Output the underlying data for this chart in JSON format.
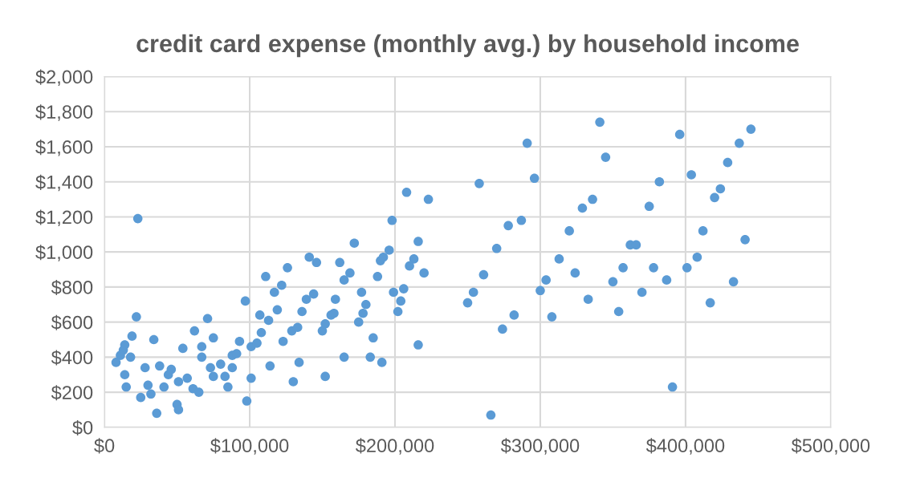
{
  "chart_data": {
    "type": "scatter",
    "title": "credit card expense (monthly avg.) by household income",
    "x": [
      22000,
      19000,
      14000,
      13000,
      11000,
      8000,
      18000,
      14000,
      15000,
      28000,
      34000,
      25000,
      30000,
      32000,
      36000,
      38000,
      46000,
      44000,
      41000,
      50000,
      51000,
      51000,
      57000,
      54000,
      61000,
      65000,
      62000,
      67000,
      67000,
      71000,
      75000,
      73000,
      75000,
      80000,
      83000,
      85000,
      88000,
      91000,
      88000,
      93000,
      97000,
      98000,
      101000,
      101000,
      105000,
      107000,
      113000,
      108000,
      111000,
      114000,
      119000,
      117000,
      122000,
      126000,
      130000,
      123000,
      129000,
      133000,
      134000,
      136000,
      139000,
      144000,
      141000,
      146000,
      162000,
      159000,
      165000,
      152000,
      150000,
      152000,
      156000,
      158000,
      165000,
      23000,
      291000,
      296000,
      258000,
      208000,
      223000,
      198000,
      287000,
      278000,
      270000,
      172000,
      196000,
      190000,
      216000,
      213000,
      329000,
      336000,
      320000,
      313000,
      192000,
      210000,
      220000,
      261000,
      169000,
      188000,
      177000,
      180000,
      178000,
      175000,
      199000,
      206000,
      204000,
      202000,
      185000,
      216000,
      183000,
      191000,
      254000,
      250000,
      282000,
      274000,
      266000,
      324000,
      304000,
      300000,
      333000,
      308000,
      341000,
      396000,
      445000,
      437000,
      345000,
      429000,
      404000,
      382000,
      424000,
      420000,
      375000,
      412000,
      441000,
      362000,
      366000,
      408000,
      357000,
      378000,
      401000,
      350000,
      387000,
      433000,
      370000,
      417000,
      354000,
      391000
    ],
    "values": [
      630,
      520,
      470,
      440,
      410,
      370,
      400,
      300,
      230,
      340,
      500,
      170,
      240,
      190,
      80,
      350,
      330,
      300,
      230,
      130,
      100,
      260,
      280,
      450,
      220,
      200,
      550,
      460,
      400,
      620,
      510,
      340,
      290,
      360,
      290,
      230,
      410,
      420,
      340,
      490,
      720,
      150,
      280,
      460,
      480,
      640,
      610,
      540,
      860,
      350,
      670,
      770,
      810,
      910,
      260,
      490,
      550,
      570,
      370,
      660,
      730,
      760,
      970,
      940,
      940,
      730,
      840,
      290,
      550,
      590,
      640,
      650,
      400,
      1190,
      1620,
      1420,
      1390,
      1340,
      1300,
      1180,
      1180,
      1150,
      1020,
      1050,
      1010,
      950,
      1060,
      960,
      1250,
      1300,
      1120,
      960,
      970,
      920,
      880,
      870,
      880,
      860,
      770,
      700,
      650,
      600,
      770,
      790,
      720,
      660,
      510,
      470,
      400,
      370,
      770,
      710,
      640,
      560,
      70,
      880,
      840,
      780,
      730,
      630,
      1740,
      1670,
      1700,
      1620,
      1540,
      1510,
      1440,
      1400,
      1360,
      1310,
      1260,
      1120,
      1070,
      1040,
      1040,
      970,
      910,
      910,
      910,
      830,
      840,
      830,
      770,
      710,
      660,
      230
    ],
    "color": "#5b9bd5",
    "marker": "circle",
    "xlim": [
      0,
      500000
    ],
    "xticks": [
      {
        "value": 0,
        "label": "$0"
      },
      {
        "value": 100000,
        "label": "$100,000"
      },
      {
        "value": 200000,
        "label": "$200,000"
      },
      {
        "value": 300000,
        "label": "$300,000"
      },
      {
        "value": 400000,
        "label": "$400,000"
      },
      {
        "value": 500000,
        "label": "$500,000"
      }
    ],
    "ylim": [
      0,
      2000
    ],
    "yticks": [
      {
        "value": 0,
        "label": "$0"
      },
      {
        "value": 200,
        "label": "$200"
      },
      {
        "value": 400,
        "label": "$400"
      },
      {
        "value": 600,
        "label": "$600"
      },
      {
        "value": 800,
        "label": "$800"
      },
      {
        "value": 1000,
        "label": "$1,000"
      },
      {
        "value": 1200,
        "label": "$1,200"
      },
      {
        "value": 1400,
        "label": "$1,400"
      },
      {
        "value": 1600,
        "label": "$1,600"
      },
      {
        "value": 1800,
        "label": "$1,800"
      },
      {
        "value": 2000,
        "label": "$2,000"
      }
    ],
    "grid": true
  }
}
